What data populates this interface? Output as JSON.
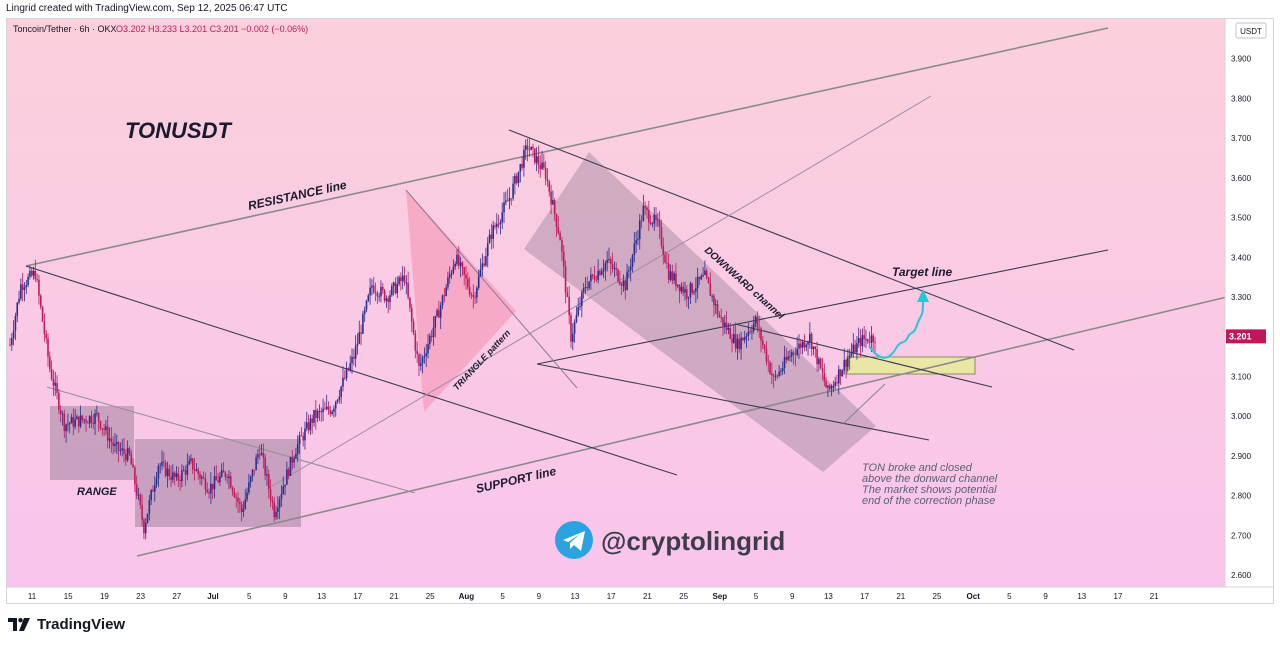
{
  "header": {
    "attribution": "Lingrid created with TradingView.com, Sep 12, 2025 06:47 UTC",
    "symbol_line": "Toncoin/Tether · 6h · OKX",
    "ohlc": "O3.202  H3.233  L3.201  C3.201  −0.002 (−0.06%)"
  },
  "footer": {
    "logo_text": "TradingView"
  },
  "colors": {
    "up": "#2a2e8c",
    "down": "#c2185b",
    "bg_top": "#fbd0dc",
    "bg_bottom": "#f9c4ec",
    "price_tag": "#c2185b",
    "arrow": "#26c6da"
  },
  "chart_data": {
    "type": "candlestick",
    "symbol_title": "TONUSDT",
    "currency": "USDT",
    "current_price": "3.201",
    "y_ticks": [
      "3.900",
      "3.800",
      "3.700",
      "3.600",
      "3.500",
      "3.400",
      "3.300",
      "3.200",
      "3.100",
      "3.000",
      "2.900",
      "2.800",
      "2.700",
      "2.600"
    ],
    "ylim": [
      2.57,
      4.0
    ],
    "x_ticks": [
      "11",
      "15",
      "19",
      "23",
      "27",
      "Jul",
      "5",
      "9",
      "13",
      "17",
      "21",
      "25",
      "Aug",
      "5",
      "9",
      "13",
      "17",
      "21",
      "25",
      "Sep",
      "5",
      "9",
      "13",
      "17",
      "21",
      "25",
      "Oct",
      "5",
      "9",
      "13",
      "17",
      "21"
    ],
    "x_bold": [
      "Jul",
      "Aug",
      "Sep",
      "Oct"
    ],
    "anchor_path": [
      [
        0,
        3.18
      ],
      [
        6,
        3.33
      ],
      [
        14,
        3.36
      ],
      [
        22,
        3.12
      ],
      [
        30,
        2.98
      ],
      [
        48,
        3.0
      ],
      [
        58,
        2.92
      ],
      [
        66,
        2.9
      ],
      [
        74,
        2.72
      ],
      [
        82,
        2.88
      ],
      [
        92,
        2.84
      ],
      [
        100,
        2.88
      ],
      [
        110,
        2.82
      ],
      [
        120,
        2.86
      ],
      [
        128,
        2.76
      ],
      [
        138,
        2.92
      ],
      [
        146,
        2.76
      ],
      [
        158,
        2.92
      ],
      [
        168,
        3.0
      ],
      [
        178,
        3.02
      ],
      [
        190,
        3.15
      ],
      [
        200,
        3.33
      ],
      [
        208,
        3.3
      ],
      [
        218,
        3.35
      ],
      [
        226,
        3.12
      ],
      [
        236,
        3.25
      ],
      [
        246,
        3.4
      ],
      [
        256,
        3.3
      ],
      [
        266,
        3.46
      ],
      [
        276,
        3.55
      ],
      [
        286,
        3.68
      ],
      [
        296,
        3.61
      ],
      [
        304,
        3.45
      ],
      [
        310,
        3.2
      ],
      [
        318,
        3.33
      ],
      [
        330,
        3.39
      ],
      [
        340,
        3.33
      ],
      [
        350,
        3.52
      ],
      [
        358,
        3.48
      ],
      [
        364,
        3.36
      ],
      [
        374,
        3.31
      ],
      [
        384,
        3.35
      ],
      [
        392,
        3.25
      ],
      [
        402,
        3.18
      ],
      [
        412,
        3.24
      ],
      [
        422,
        3.09
      ],
      [
        432,
        3.16
      ],
      [
        442,
        3.2
      ],
      [
        452,
        3.06
      ],
      [
        462,
        3.14
      ],
      [
        470,
        3.19
      ],
      [
        478,
        3.2
      ]
    ],
    "annotations": {
      "title": "TONUSDT",
      "resistance": "RESISTANCE line",
      "support": "SUPPORT line",
      "triangle": "TRIANGLE pattern",
      "downward": "DOWNWARD channel",
      "target": "Target line",
      "range": "RANGE",
      "note_lines": [
        "TON broke and closed",
        "above the donward channel",
        "The market shows potential",
        "end of the correction phase"
      ],
      "watermark": "@cryptolingrid"
    }
  }
}
